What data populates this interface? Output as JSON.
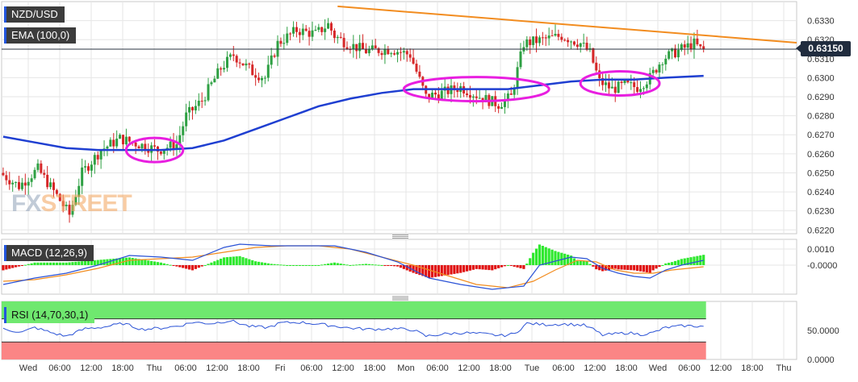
{
  "labels": {
    "symbol": "NZD/USD",
    "ema": "EMA (100,0)",
    "macd": "MACD (12,26,9)",
    "rsi": "RSI (14,70,30,1)",
    "current_price": "0.63150",
    "watermark_fx": "FX",
    "watermark_street": "STREET"
  },
  "colors": {
    "up_candle": "#2ea043",
    "down_candle": "#d62728",
    "ema": "#1f3fd1",
    "trendline": "#f28c1f",
    "ellipse": "#e81ee0",
    "macd_line": "#2a52d6",
    "signal_line": "#f28c1f",
    "hist_pos": "#2ee82e",
    "hist_neg": "#e01010",
    "rsi_line": "#2a52d6",
    "rsi_overbought": "#6fe86f",
    "rsi_oversold": "#fb8585",
    "grid": "#e6e6e6"
  },
  "chart_data": [
    {
      "type": "candlestick",
      "title": "NZD/USD",
      "ylim": [
        0.6218,
        0.634
      ],
      "y_ticks": [
        "0.6220",
        "0.6230",
        "0.6240",
        "0.6250",
        "0.6260",
        "0.6270",
        "0.6280",
        "0.6290",
        "0.6300",
        "0.6310",
        "0.6320",
        "0.6330"
      ],
      "x_tick_labels": [
        "Wed",
        "06:00",
        "12:00",
        "18:00",
        "Thu",
        "06:00",
        "12:00",
        "18:00",
        "Fri",
        "06:00",
        "12:00",
        "18:00",
        "Mon",
        "06:00",
        "12:00",
        "18:00",
        "Tue",
        "06:00",
        "12:00",
        "18:00",
        "Wed",
        "06:00",
        "12:00",
        "18:00",
        "Thu"
      ],
      "current_price": 0.6315,
      "price_waypoints": [
        [
          0,
          0.625
        ],
        [
          6,
          0.6243
        ],
        [
          12,
          0.6252
        ],
        [
          18,
          0.6238
        ],
        [
          22,
          0.6228
        ],
        [
          26,
          0.625
        ],
        [
          32,
          0.6262
        ],
        [
          38,
          0.6268
        ],
        [
          44,
          0.6265
        ],
        [
          50,
          0.6262
        ],
        [
          56,
          0.6265
        ],
        [
          59,
          0.628
        ],
        [
          64,
          0.6288
        ],
        [
          70,
          0.6305
        ],
        [
          74,
          0.6312
        ],
        [
          80,
          0.6303
        ],
        [
          84,
          0.63
        ],
        [
          88,
          0.6318
        ],
        [
          94,
          0.6325
        ],
        [
          100,
          0.6323
        ],
        [
          104,
          0.6328
        ],
        [
          106,
          0.6322
        ],
        [
          110,
          0.6318
        ],
        [
          116,
          0.6314
        ],
        [
          124,
          0.6315
        ],
        [
          130,
          0.6312
        ],
        [
          135,
          0.629
        ],
        [
          140,
          0.6292
        ],
        [
          146,
          0.6295
        ],
        [
          152,
          0.629
        ],
        [
          158,
          0.6286
        ],
        [
          162,
          0.629
        ],
        [
          166,
          0.6318
        ],
        [
          172,
          0.632
        ],
        [
          178,
          0.6322
        ],
        [
          184,
          0.6318
        ],
        [
          187,
          0.6313
        ],
        [
          190,
          0.6298
        ],
        [
          194,
          0.6294
        ],
        [
          198,
          0.6296
        ],
        [
          202,
          0.6295
        ],
        [
          206,
          0.63
        ],
        [
          210,
          0.631
        ],
        [
          216,
          0.6315
        ],
        [
          220,
          0.6318
        ],
        [
          222,
          0.6315
        ]
      ],
      "ema_100": {
        "name": "EMA (100,0)",
        "points": [
          [
            0,
            0.6269
          ],
          [
            10,
            0.6266
          ],
          [
            20,
            0.6263
          ],
          [
            30,
            0.6262
          ],
          [
            40,
            0.6262
          ],
          [
            50,
            0.6262
          ],
          [
            60,
            0.6263
          ],
          [
            70,
            0.6267
          ],
          [
            80,
            0.6273
          ],
          [
            90,
            0.6279
          ],
          [
            100,
            0.6285
          ],
          [
            110,
            0.6289
          ],
          [
            120,
            0.6292
          ],
          [
            130,
            0.6294
          ],
          [
            140,
            0.6294
          ],
          [
            150,
            0.6294
          ],
          [
            160,
            0.6294
          ],
          [
            170,
            0.6296
          ],
          [
            180,
            0.6298
          ],
          [
            190,
            0.6299
          ],
          [
            200,
            0.6299
          ],
          [
            210,
            0.63
          ],
          [
            222,
            0.6301
          ]
        ]
      },
      "trendline": [
        [
          106,
          0.63375
        ],
        [
          247,
          0.6319
        ]
      ],
      "highlight_ellipses": [
        [
          40,
          56,
          0.6262
        ],
        [
          128,
          172,
          0.6294
        ],
        [
          184,
          207,
          0.6297
        ]
      ]
    },
    {
      "type": "macd",
      "title": "MACD (12,26,9)",
      "ylim": [
        -0.0018,
        0.0016
      ],
      "y_ticks": [
        "0.0010",
        "-0.0000"
      ],
      "macd_line": [
        [
          0,
          -0.0012
        ],
        [
          10,
          -0.0008
        ],
        [
          20,
          -0.0005
        ],
        [
          30,
          0.0
        ],
        [
          40,
          0.0006
        ],
        [
          50,
          0.0005
        ],
        [
          60,
          0.0003
        ],
        [
          70,
          0.0011
        ],
        [
          75,
          0.0013
        ],
        [
          85,
          0.0012
        ],
        [
          95,
          0.0012
        ],
        [
          105,
          0.0012
        ],
        [
          115,
          0.0008
        ],
        [
          125,
          0.0002
        ],
        [
          135,
          -0.0008
        ],
        [
          145,
          -0.0012
        ],
        [
          155,
          -0.0015
        ],
        [
          165,
          -0.0013
        ],
        [
          170,
          0.0
        ],
        [
          180,
          0.0005
        ],
        [
          185,
          0.0004
        ],
        [
          190,
          -0.0002
        ],
        [
          195,
          -0.0005
        ],
        [
          200,
          -0.0007
        ],
        [
          205,
          -0.0008
        ],
        [
          210,
          -0.0003
        ],
        [
          215,
          0.0
        ],
        [
          222,
          0.0003
        ]
      ],
      "signal_line": [
        [
          0,
          -0.001
        ],
        [
          10,
          -0.0009
        ],
        [
          20,
          -0.0006
        ],
        [
          30,
          -0.0002
        ],
        [
          40,
          0.0003
        ],
        [
          50,
          0.0004
        ],
        [
          60,
          0.0005
        ],
        [
          70,
          0.0008
        ],
        [
          80,
          0.0011
        ],
        [
          90,
          0.0012
        ],
        [
          100,
          0.0012
        ],
        [
          110,
          0.001
        ],
        [
          120,
          0.0005
        ],
        [
          130,
          0.0
        ],
        [
          140,
          -0.0006
        ],
        [
          150,
          -0.0012
        ],
        [
          160,
          -0.0014
        ],
        [
          168,
          -0.001
        ],
        [
          175,
          -0.0003
        ],
        [
          182,
          0.0003
        ],
        [
          188,
          0.0002
        ],
        [
          194,
          -0.0003
        ],
        [
          200,
          -0.0005
        ],
        [
          206,
          -0.0005
        ],
        [
          212,
          -0.0003
        ],
        [
          222,
          -0.0001
        ]
      ]
    },
    {
      "type": "rsi",
      "title": "RSI (14,70,30,1)",
      "ylim": [
        0,
        100
      ],
      "y_ticks": [
        "50.0000",
        "0.0000"
      ],
      "overbought": 70,
      "oversold": 30,
      "rsi_line": [
        [
          0,
          52
        ],
        [
          6,
          47
        ],
        [
          10,
          55
        ],
        [
          16,
          45
        ],
        [
          20,
          40
        ],
        [
          26,
          53
        ],
        [
          32,
          56
        ],
        [
          38,
          62
        ],
        [
          44,
          52
        ],
        [
          50,
          54
        ],
        [
          56,
          58
        ],
        [
          60,
          64
        ],
        [
          66,
          62
        ],
        [
          72,
          67
        ],
        [
          78,
          57
        ],
        [
          84,
          55
        ],
        [
          88,
          63
        ],
        [
          94,
          64
        ],
        [
          100,
          61
        ],
        [
          106,
          57
        ],
        [
          110,
          54
        ],
        [
          116,
          52
        ],
        [
          124,
          53
        ],
        [
          130,
          51
        ],
        [
          134,
          40
        ],
        [
          140,
          44
        ],
        [
          146,
          46
        ],
        [
          152,
          44
        ],
        [
          158,
          41
        ],
        [
          162,
          44
        ],
        [
          166,
          62
        ],
        [
          172,
          60
        ],
        [
          178,
          61
        ],
        [
          184,
          59
        ],
        [
          187,
          52
        ],
        [
          190,
          42
        ],
        [
          194,
          44
        ],
        [
          198,
          46
        ],
        [
          202,
          43
        ],
        [
          206,
          46
        ],
        [
          210,
          55
        ],
        [
          216,
          58
        ],
        [
          222,
          57
        ]
      ]
    }
  ]
}
